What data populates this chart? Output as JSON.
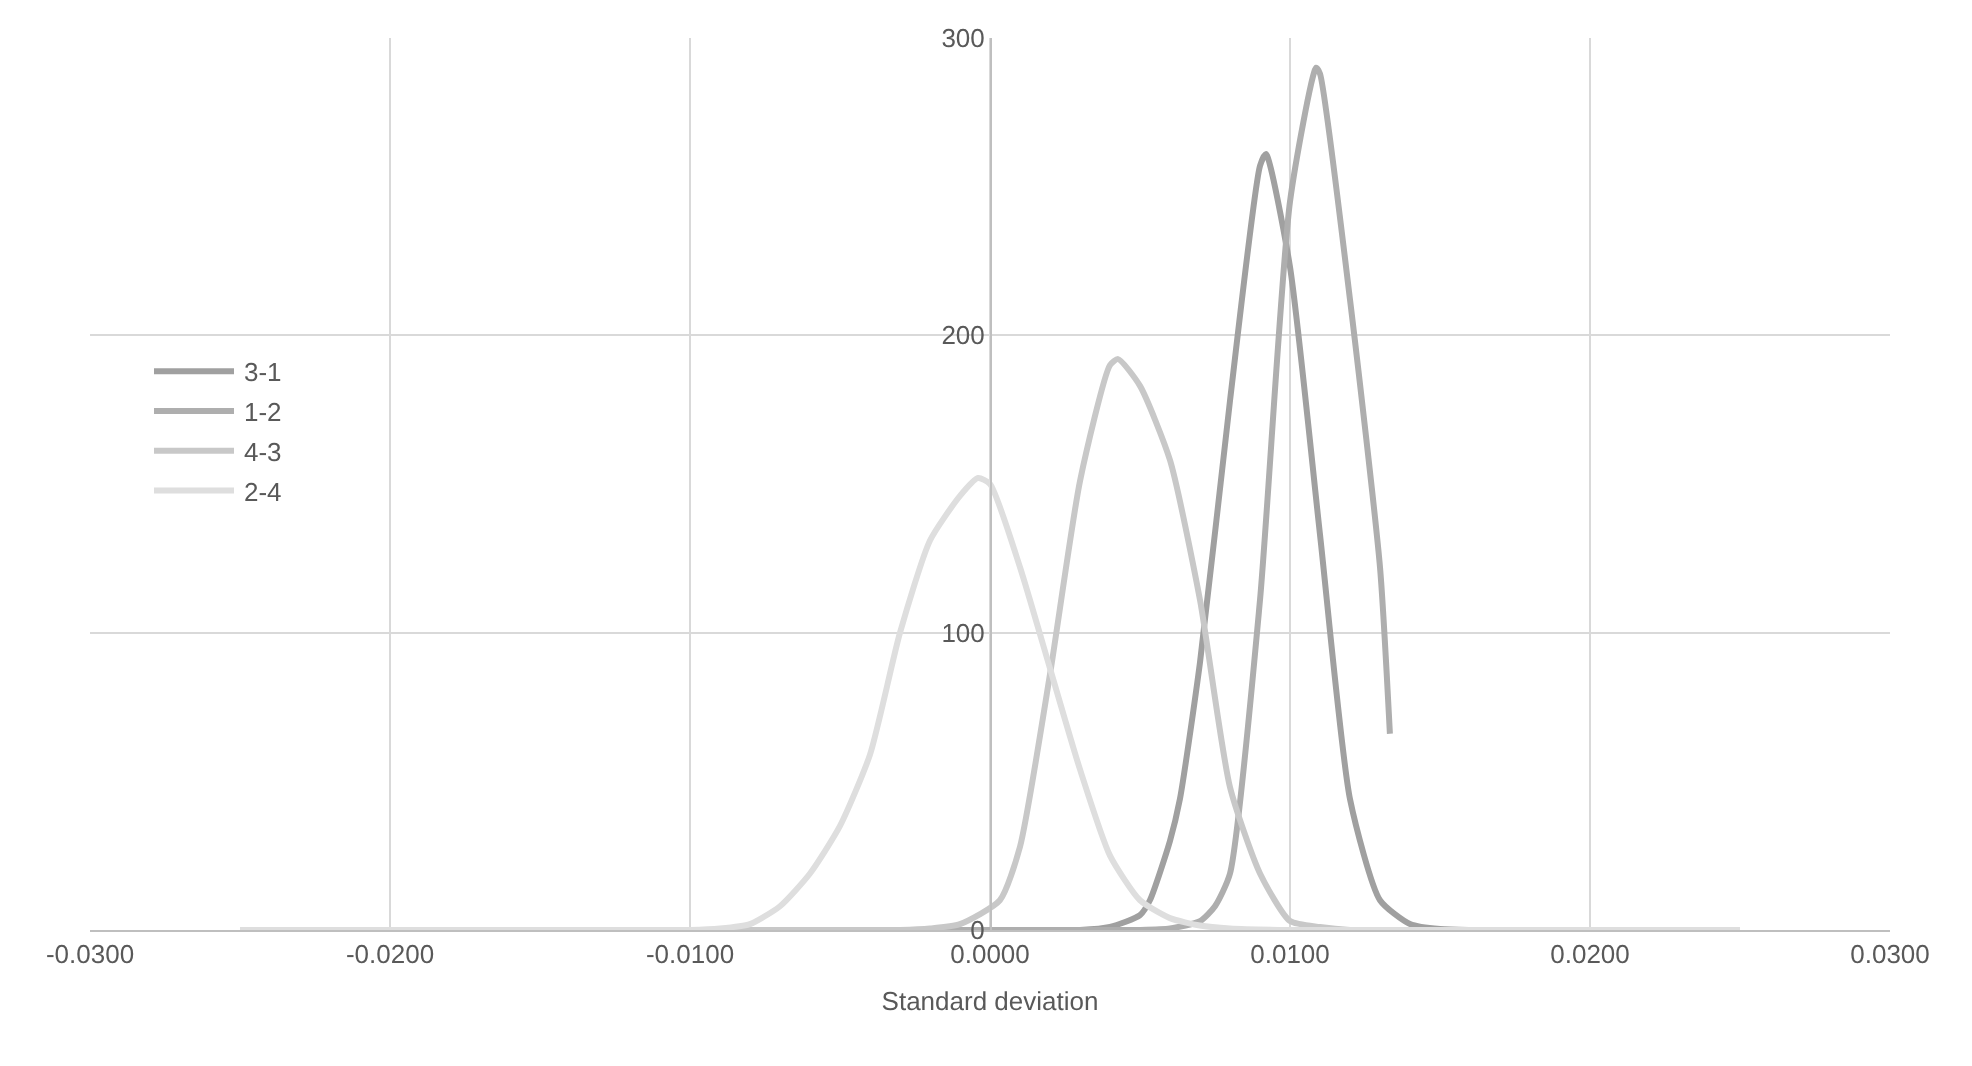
{
  "chart_data": {
    "type": "line",
    "xlabel": "Standard deviation",
    "xlim": [
      -0.03,
      0.03
    ],
    "xticks": [
      {
        "value": -0.03,
        "label": "-0.0300"
      },
      {
        "value": -0.02,
        "label": "-0.0200"
      },
      {
        "value": -0.01,
        "label": "-0.0100"
      },
      {
        "value": 0,
        "label": "0.0000"
      },
      {
        "value": 0.01,
        "label": "0.0100"
      },
      {
        "value": 0.02,
        "label": "0.0200"
      },
      {
        "value": 0.03,
        "label": "0.0300"
      }
    ],
    "ylim": [
      0,
      300
    ],
    "yticks": [
      0,
      100,
      200,
      300
    ],
    "grid": true,
    "legend": "left",
    "marker": "none",
    "line_style": "solid",
    "series": [
      {
        "name": "3-1",
        "color": "#a0a0a0",
        "x": [
          -0.025,
          0.003,
          0.004,
          0.005,
          0.00533,
          0.006,
          0.00633,
          0.007,
          0.008,
          0.009,
          0.0092,
          0.01,
          0.011,
          0.012,
          0.013,
          0.014,
          0.015,
          0.025
        ],
        "values": [
          0,
          0,
          1,
          5,
          10,
          30,
          44,
          90,
          178,
          257,
          261,
          223,
          133,
          44,
          10,
          2,
          0.3,
          0
        ]
      },
      {
        "name": "1-2",
        "color": "#aeaeae",
        "x": [
          -0.025,
          0.005,
          0.006,
          0.007,
          0.0075,
          0.008,
          0.009,
          0.01,
          0.01087,
          0.011,
          0.012,
          0.013,
          0.01333
        ],
        "values": [
          0,
          0,
          0.5,
          3,
          8,
          19,
          111,
          245,
          290,
          288,
          212,
          122,
          66
        ]
      },
      {
        "name": "4-3",
        "color": "#c8c8c8",
        "x": [
          -0.025,
          -0.003,
          -0.002,
          -0.001,
          0.00033,
          0.001,
          0.002,
          0.003,
          0.004,
          0.00427,
          0.005,
          0.006,
          0.007,
          0.008,
          0.009,
          0.01,
          0.011,
          0.012,
          0.025
        ],
        "values": [
          0,
          0,
          0.5,
          2,
          10,
          28,
          86,
          151,
          190,
          192,
          183,
          158,
          111,
          48,
          19,
          3,
          1,
          0,
          0
        ]
      },
      {
        "name": "2-4",
        "color": "#dedede",
        "x": [
          -0.025,
          -0.01,
          -0.009,
          -0.008,
          -0.007,
          -0.006,
          -0.005,
          -0.004,
          -0.003,
          -0.002,
          -0.001,
          -0.0004,
          0,
          0.001,
          0.002,
          0.003,
          0.004,
          0.005,
          0.006,
          0.007,
          0.008,
          0.01,
          0.025
        ],
        "values": [
          0,
          0,
          0.5,
          2,
          8,
          19,
          35,
          59,
          100,
          131,
          146,
          152,
          150,
          122,
          88,
          54,
          25,
          10,
          4,
          1.5,
          0.5,
          0,
          0
        ]
      }
    ]
  }
}
